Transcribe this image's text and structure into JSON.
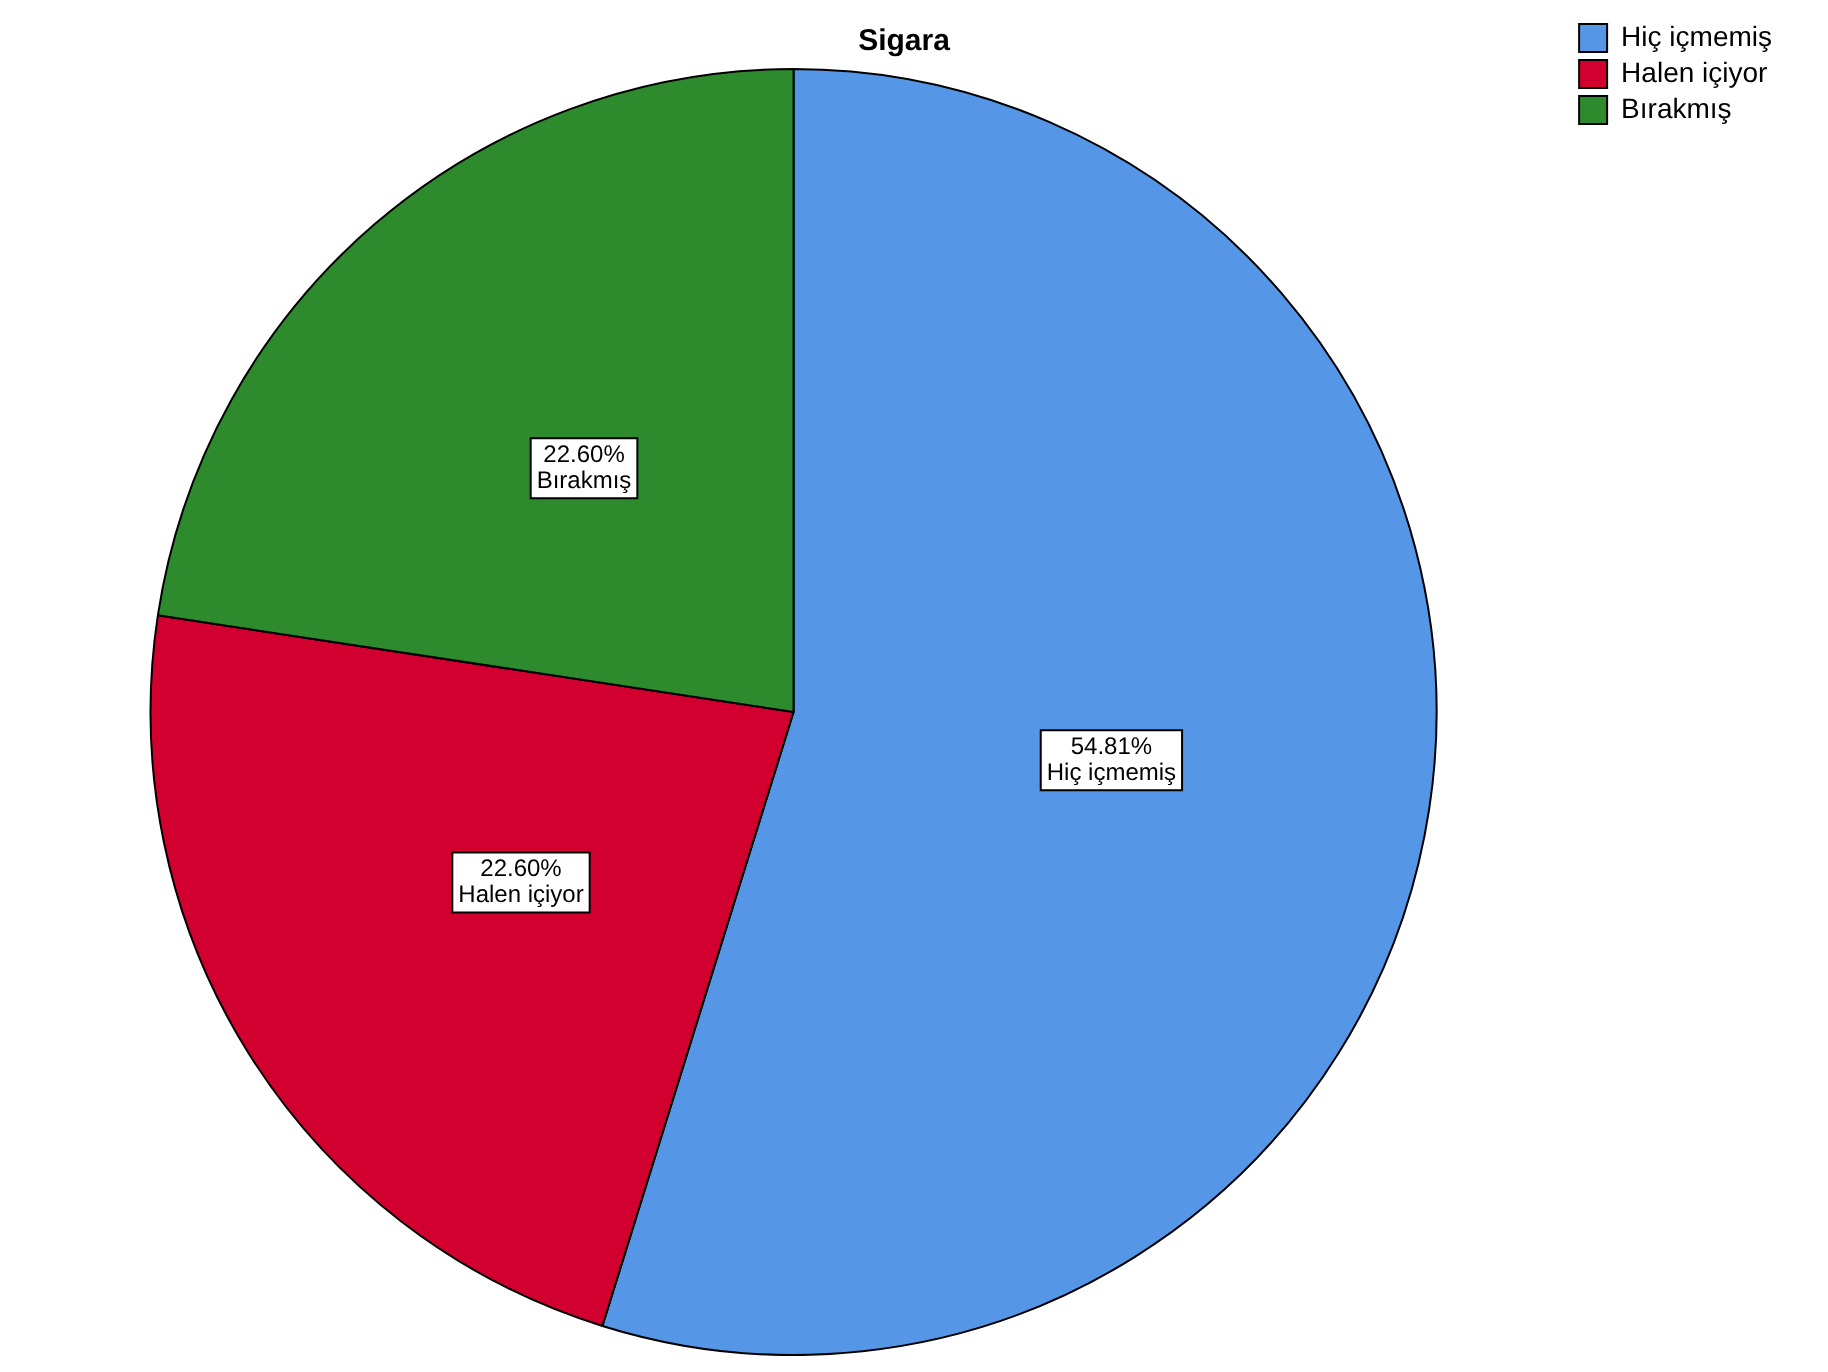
{
  "chart_data": {
    "type": "pie",
    "title": "Sigara",
    "categories": [
      "Hiç içmemiş",
      "Halen içiyor",
      "Bırakmış"
    ],
    "values": [
      54.81,
      22.6,
      22.6
    ],
    "value_labels": [
      "54.81%",
      "22.60%",
      "22.60%"
    ],
    "colors": [
      "#5596e6",
      "#d2002f",
      "#2d8a2d"
    ],
    "legend": "top right"
  }
}
